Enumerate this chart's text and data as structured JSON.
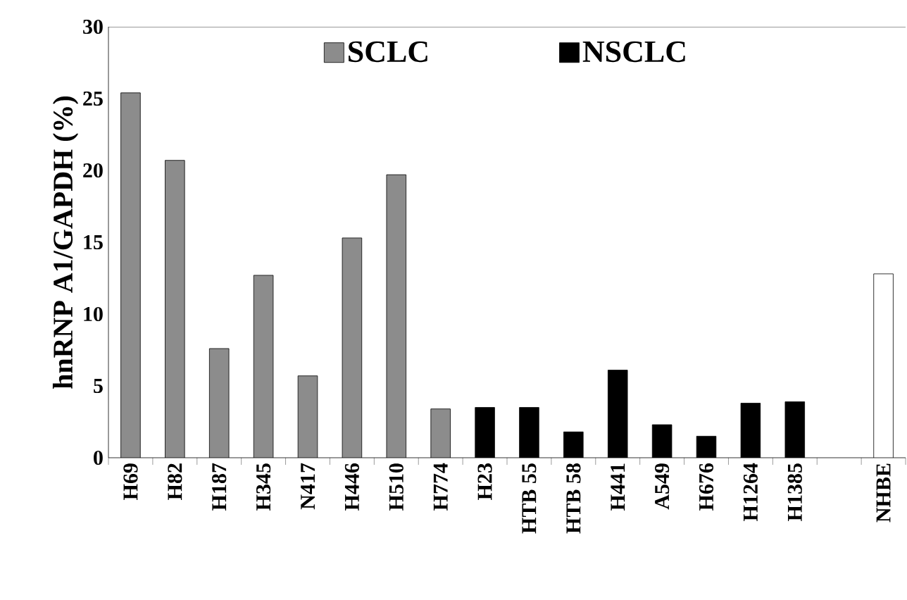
{
  "chart_data": {
    "type": "bar",
    "ylabel": "hnRNP A1/GAPDH (%)",
    "categories": [
      "H69",
      "H82",
      "H187",
      "H345",
      "N417",
      "H446",
      "H510",
      "H774",
      "H23",
      "HTB 55",
      "HTB 58",
      "H441",
      "A549",
      "H676",
      "H1264",
      "H1385",
      null,
      "NHBE"
    ],
    "series": [
      {
        "name": "SCLC",
        "color": "#8c8c8c",
        "values": [
          25.4,
          20.7,
          7.6,
          12.7,
          5.7,
          15.3,
          19.7,
          3.4,
          null,
          null,
          null,
          null,
          null,
          null,
          null,
          null,
          null,
          null
        ]
      },
      {
        "name": "NSCLC",
        "color": "#000000",
        "values": [
          null,
          null,
          null,
          null,
          null,
          null,
          null,
          null,
          3.5,
          3.5,
          1.8,
          6.1,
          2.3,
          1.5,
          3.8,
          3.9,
          null,
          null
        ]
      },
      {
        "color": "#ffffff",
        "values": [
          null,
          null,
          null,
          null,
          null,
          null,
          null,
          null,
          null,
          null,
          null,
          null,
          null,
          null,
          null,
          null,
          null,
          12.8
        ]
      }
    ],
    "ylim": [
      0,
      30
    ],
    "yticks": [
      0,
      5,
      10,
      15,
      20,
      25,
      30
    ],
    "legend": "top"
  }
}
